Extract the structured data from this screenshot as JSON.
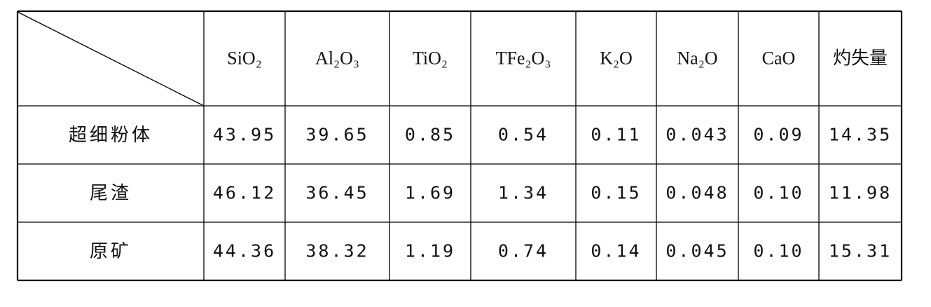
{
  "table": {
    "columns": [
      "SiO₂",
      "Al₂O₃",
      "TiO₂",
      "TFe₂O₃",
      "K₂O",
      "Na₂O",
      "CaO",
      "灼失量"
    ],
    "rows": [
      {
        "label": "超细粉体",
        "values": [
          "43.95",
          "39.65",
          "0.85",
          "0.54",
          "0.11",
          "0.043",
          "0.09",
          "14.35"
        ]
      },
      {
        "label": "尾渣",
        "values": [
          "46.12",
          "36.45",
          "1.69",
          "1.34",
          "0.15",
          "0.048",
          "0.10",
          "11.98"
        ]
      },
      {
        "label": "原矿",
        "values": [
          "44.36",
          "38.32",
          "1.19",
          "0.74",
          "0.14",
          "0.045",
          "0.10",
          "15.31"
        ]
      }
    ]
  }
}
